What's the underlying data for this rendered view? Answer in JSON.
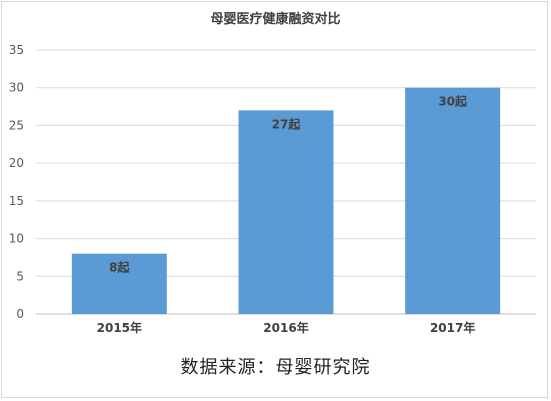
{
  "chart_data": {
    "type": "bar",
    "title": "母婴医疗健康融资对比",
    "categories": [
      "2015年",
      "2016年",
      "2017年"
    ],
    "values": [
      8,
      27,
      30
    ],
    "data_labels": [
      "8起",
      "27起",
      "30起"
    ],
    "ylim": [
      0,
      35
    ],
    "yticks": [
      0,
      5,
      10,
      15,
      20,
      25,
      30,
      35
    ],
    "grid": true,
    "legend": "none",
    "bar_color": "#5b9bd5"
  },
  "source_note": "数据来源：母婴研究院"
}
